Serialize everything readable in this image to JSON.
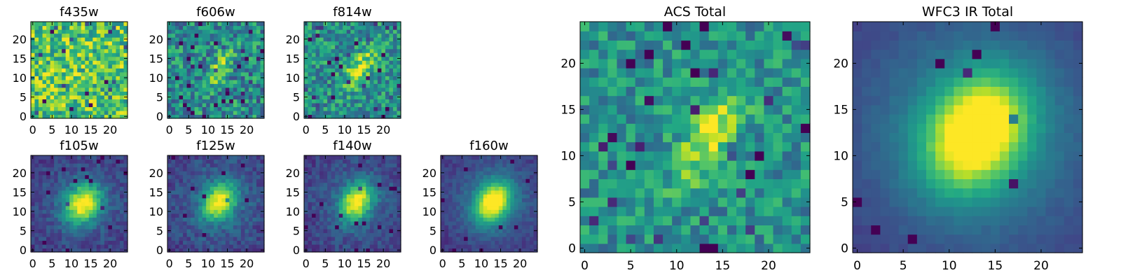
{
  "figure": {
    "colormap": "viridis",
    "tick_labels": [
      "0",
      "5",
      "10",
      "15",
      "20"
    ],
    "panels": [
      {
        "id": "f435w",
        "title": "f435w",
        "size": "small",
        "grid": 25,
        "seed": 11,
        "peak": 0.04,
        "noise": 0.55,
        "base": 0.72,
        "sx": 4,
        "sy": 2,
        "cx": 12.5,
        "cy": 11.5,
        "angle": 0.55,
        "falloff": 0,
        "xticks": [
          0,
          5,
          10,
          15,
          20
        ],
        "yticks": [
          0,
          5,
          10,
          15,
          20
        ]
      },
      {
        "id": "f606w",
        "title": "f606w",
        "size": "small",
        "grid": 25,
        "seed": 23,
        "peak": 0.3,
        "noise": 0.5,
        "base": 0.48,
        "sx": 4,
        "sy": 1.6,
        "cx": 13,
        "cy": 12.5,
        "angle": 1.1,
        "falloff": 0,
        "xticks": [
          0,
          5,
          10,
          15,
          20
        ],
        "yticks": [
          0,
          5,
          10,
          15,
          20
        ]
      },
      {
        "id": "f814w",
        "title": "f814w",
        "size": "small",
        "grid": 25,
        "seed": 37,
        "peak": 0.45,
        "noise": 0.45,
        "base": 0.5,
        "sx": 4,
        "sy": 1.8,
        "cx": 14,
        "cy": 12.5,
        "angle": 0.9,
        "falloff": 0,
        "xticks": [
          0,
          5,
          10,
          15,
          20
        ],
        "yticks": [
          0,
          5,
          10,
          15,
          20
        ]
      },
      {
        "id": "f105w",
        "title": "f105w",
        "size": "small",
        "grid": 25,
        "seed": 41,
        "peak": 0.75,
        "noise": 0.18,
        "base": 0.15,
        "sx": 3.8,
        "sy": 3,
        "cx": 13,
        "cy": 12,
        "angle": 1.0,
        "falloff": 0.15,
        "xticks": [
          0,
          5,
          10,
          15,
          20
        ],
        "yticks": [
          0,
          5,
          10,
          15,
          20
        ]
      },
      {
        "id": "f125w",
        "title": "f125w",
        "size": "small",
        "grid": 25,
        "seed": 53,
        "peak": 0.72,
        "noise": 0.2,
        "base": 0.16,
        "sx": 3.6,
        "sy": 2.6,
        "cx": 13,
        "cy": 12.5,
        "angle": 1.0,
        "falloff": 0.18,
        "xticks": [
          0,
          5,
          10,
          15,
          20
        ],
        "yticks": [
          0,
          5,
          10,
          15,
          20
        ]
      },
      {
        "id": "f140w",
        "title": "f140w",
        "size": "small",
        "grid": 25,
        "seed": 67,
        "peak": 0.75,
        "noise": 0.18,
        "base": 0.16,
        "sx": 3.6,
        "sy": 2.6,
        "cx": 13,
        "cy": 12.5,
        "angle": 1.0,
        "falloff": 0.15,
        "xticks": [
          0,
          5,
          10,
          15,
          20
        ],
        "yticks": [
          0,
          5,
          10,
          15,
          20
        ]
      },
      {
        "id": "f160w",
        "title": "f160w",
        "size": "small",
        "grid": 25,
        "seed": 79,
        "peak": 0.8,
        "noise": 0.12,
        "base": 0.12,
        "sx": 3.8,
        "sy": 2.8,
        "cx": 13,
        "cy": 12.5,
        "angle": 1.0,
        "falloff": 0.25,
        "xticks": [
          0,
          5,
          10,
          15,
          20
        ],
        "yticks": [
          0,
          5,
          10,
          15,
          20
        ]
      },
      {
        "id": "acs-total",
        "title": "ACS Total",
        "size": "large",
        "grid": 25,
        "seed": 97,
        "peak": 0.42,
        "noise": 0.38,
        "base": 0.5,
        "sx": 4,
        "sy": 1.8,
        "cx": 13.5,
        "cy": 12,
        "angle": 1.0,
        "falloff": 0,
        "xticks": [
          0,
          5,
          10,
          15,
          20
        ],
        "yticks": [
          0,
          5,
          10,
          15,
          20
        ]
      },
      {
        "id": "wfc3-ir-total",
        "title": "WFC3 IR Total",
        "size": "large",
        "grid": 25,
        "seed": 113,
        "peak": 0.8,
        "noise": 0.05,
        "base": 0.15,
        "sx": 4.2,
        "sy": 3.2,
        "cx": 13,
        "cy": 12.5,
        "angle": 1.0,
        "falloff": 0.35,
        "xticks": [
          0,
          5,
          10,
          15,
          20
        ],
        "yticks": [
          0,
          5,
          10,
          15,
          20
        ]
      }
    ]
  }
}
